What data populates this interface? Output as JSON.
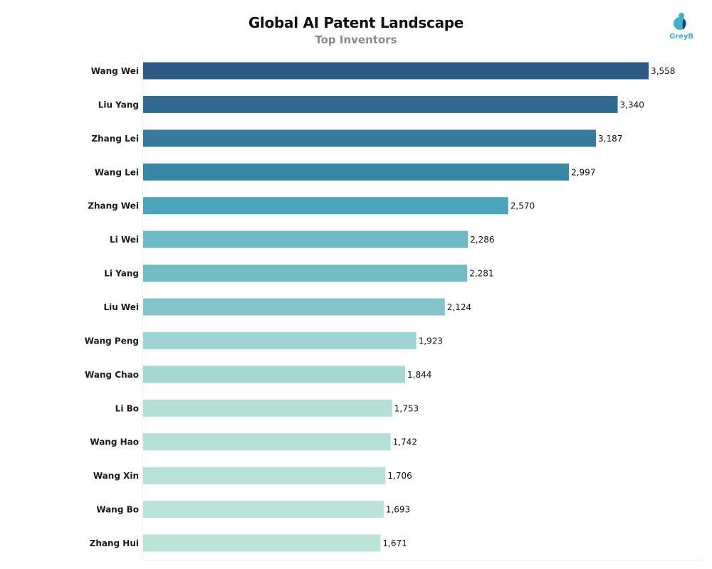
{
  "header": {
    "title": "Global AI Patent Landscape",
    "subtitle": "Top Inventors"
  },
  "logo": {
    "text": "GreyB",
    "icon": "greyb-logo-icon",
    "colors": {
      "light": "#3bb3c9",
      "dark": "#1f3f8f"
    }
  },
  "chart_data": {
    "type": "bar",
    "orientation": "horizontal",
    "title": "Global AI Patent Landscape",
    "subtitle": "Top Inventors",
    "xlabel": "",
    "ylabel": "",
    "xlim": [
      0,
      3558
    ],
    "grid": false,
    "legend": "none",
    "categories": [
      "Wang Wei",
      "Liu Yang",
      "Zhang Lei",
      "Wang Lei",
      "Zhang Wei",
      "Li Wei",
      "Li Yang",
      "Liu Wei",
      "Wang Peng",
      "Wang Chao",
      "Li Bo",
      "Wang Hao",
      "Wang Xin",
      "Wang Bo",
      "Zhang Hui"
    ],
    "values": [
      3558,
      3340,
      3187,
      2997,
      2570,
      2286,
      2281,
      2124,
      1923,
      1844,
      1753,
      1742,
      1706,
      1693,
      1671
    ],
    "value_labels": [
      "3,558",
      "3,340",
      "3,187",
      "2,997",
      "2,570",
      "2,286",
      "2,281",
      "2,124",
      "1,923",
      "1,844",
      "1,753",
      "1,742",
      "1,706",
      "1,693",
      "1,671"
    ],
    "colors": [
      "#2e5b86",
      "#316a91",
      "#347b9c",
      "#3886a6",
      "#4ba5bd",
      "#6fbac4",
      "#72bcc6",
      "#84c5cb",
      "#9ed4d2",
      "#a5d8d3",
      "#b2dfd6",
      "#b4e0d7",
      "#b7e2d8",
      "#bae3d9",
      "#bce5da"
    ]
  }
}
